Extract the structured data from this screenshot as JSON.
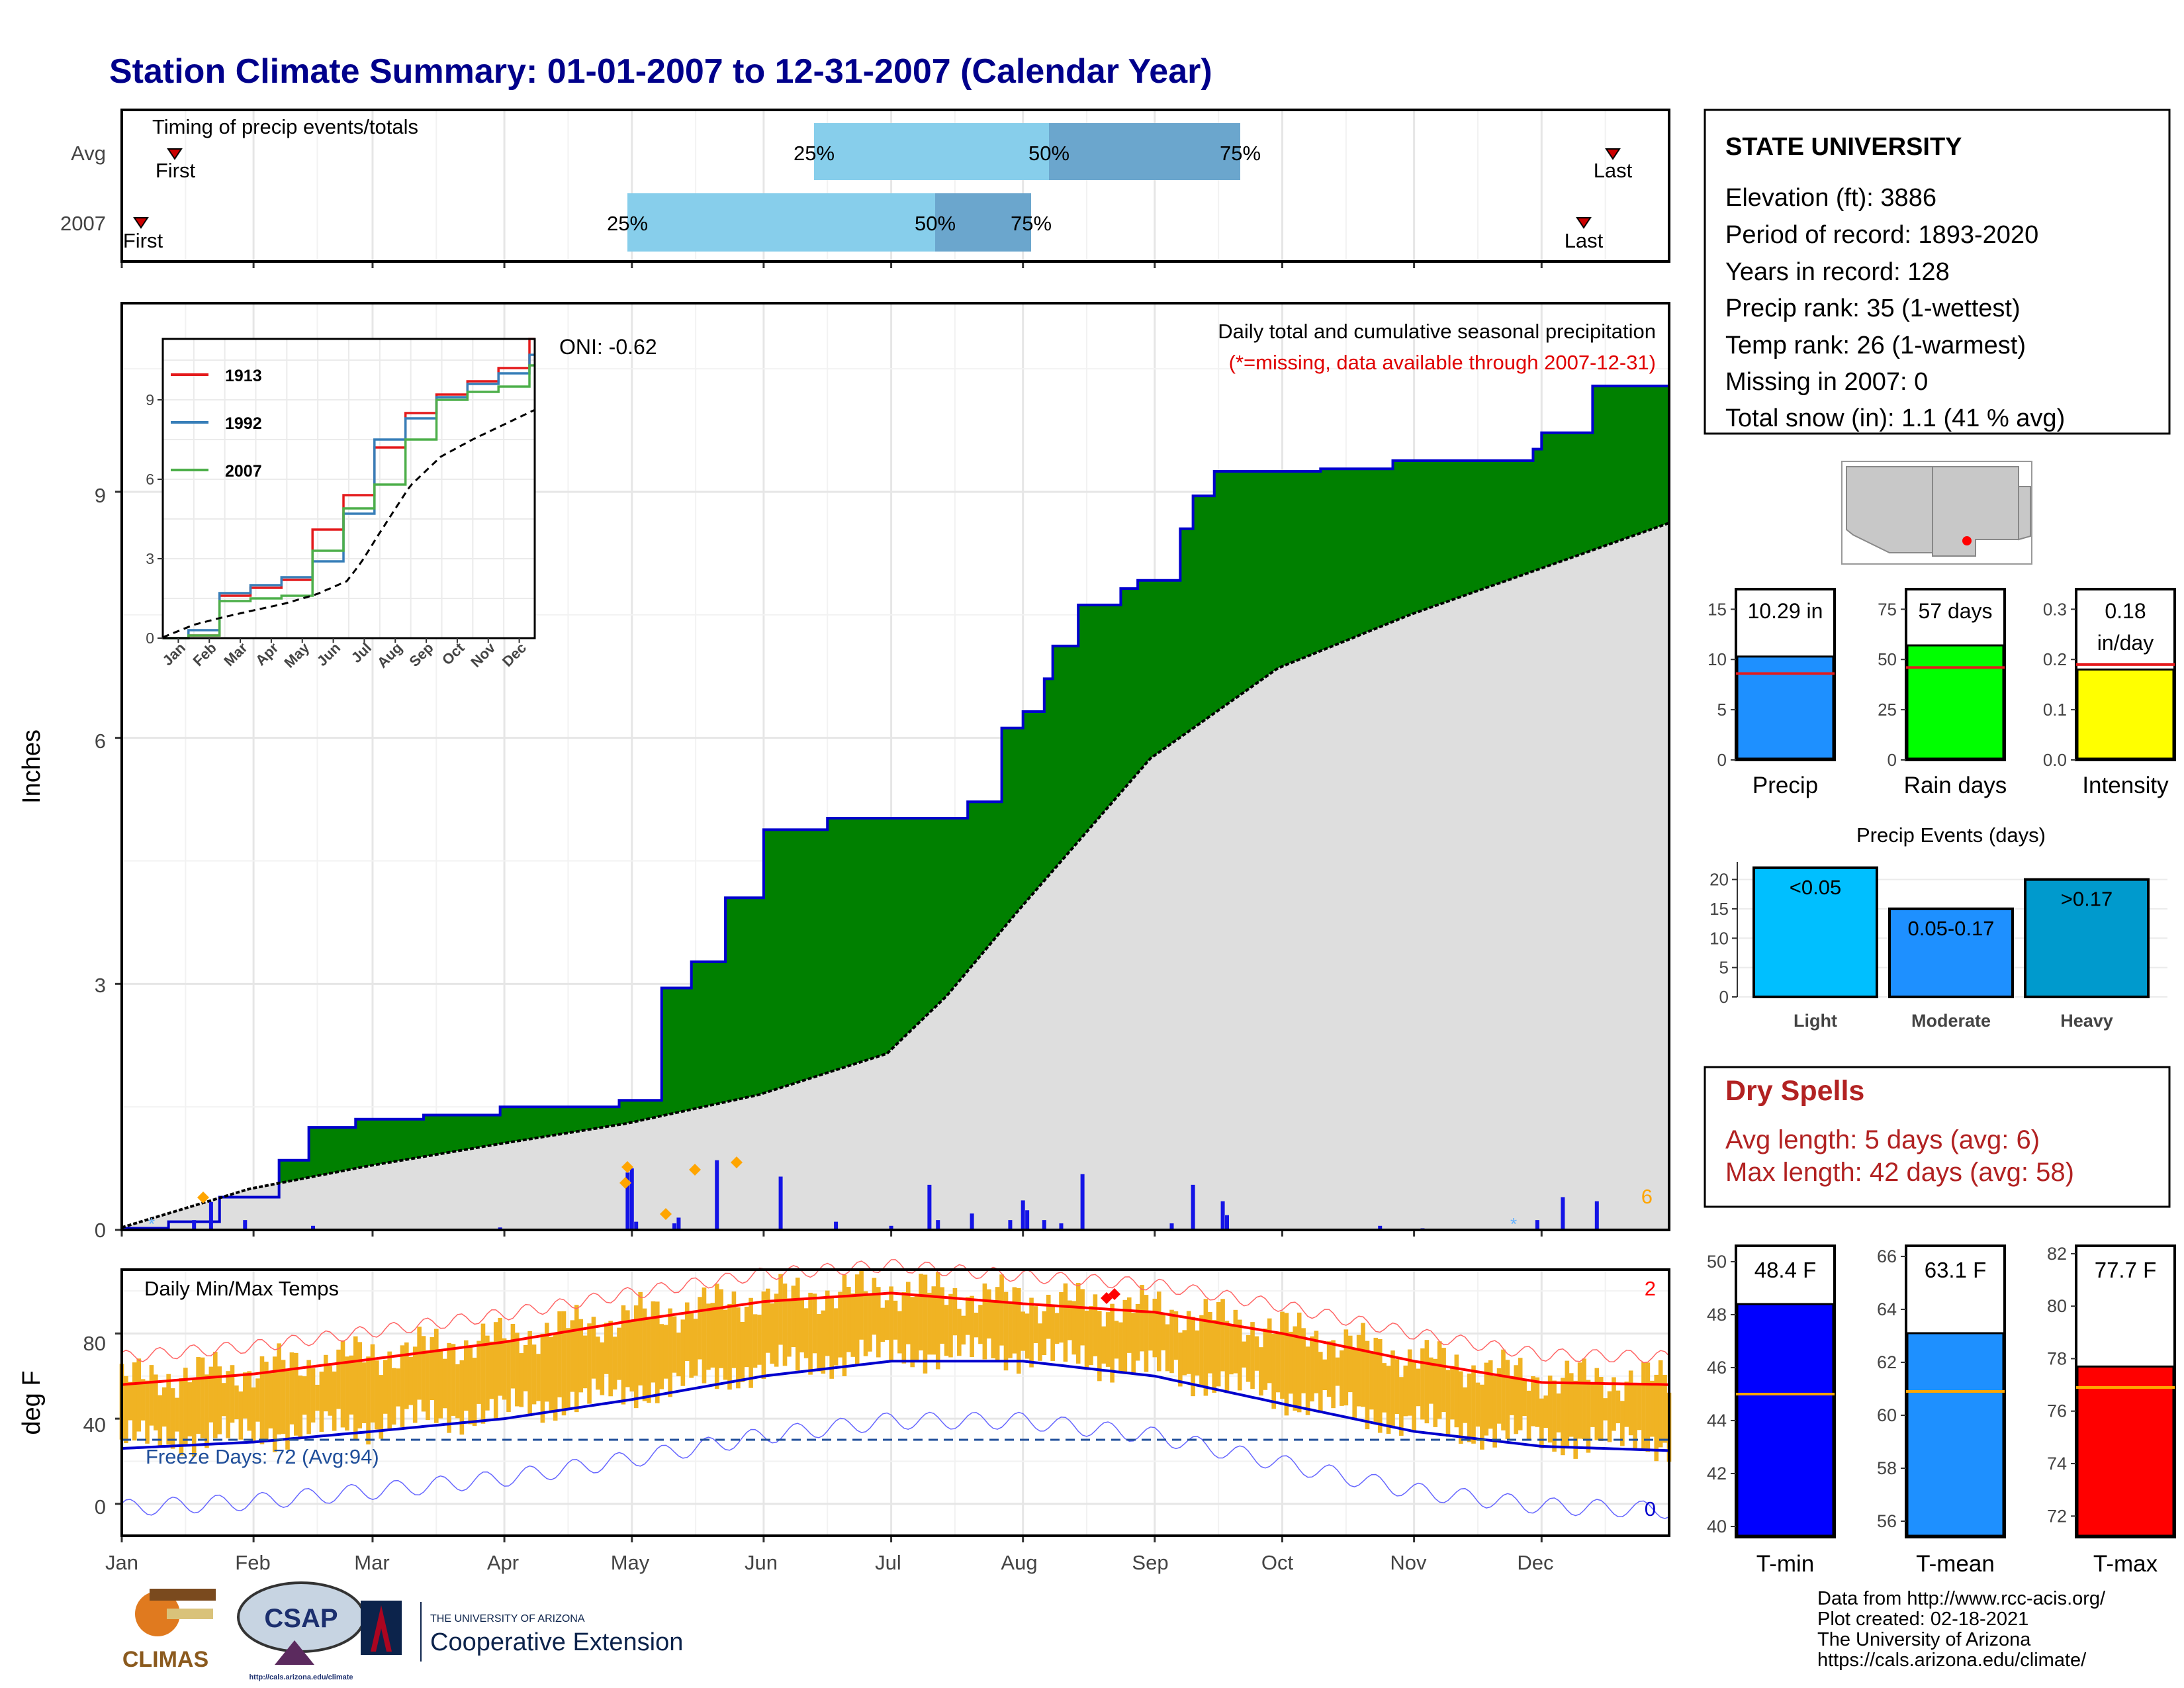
{
  "title": "Station Climate Summary: 01-01-2007 to 12-31-2007 (Calendar Year)",
  "colors": {
    "title": "#00008B",
    "precip_fill": "#008000",
    "precip_line": "#0000CD",
    "avg_fill": "#DEDEDE",
    "daily_bar": "#1414E6",
    "marker": "#FFA500",
    "missing": "#FF0000",
    "temp_range": "#F0B323",
    "tmax_avg": "#FF0000",
    "tmin_avg": "#0000CD",
    "freeze_line": "#1F4E9A",
    "timing_light": "#87CEEB",
    "timing_dark": "#6BA6CD",
    "dry_spell": "#B22222"
  },
  "timing": {
    "title": "Timing of precip events/totals",
    "rows": [
      {
        "label": "Avg",
        "first_label": "First",
        "last_label": "Last",
        "p25_label": "25%",
        "p50_label": "50%",
        "p75_label": "75%"
      },
      {
        "label": "2007",
        "first_label": "First",
        "last_label": "Last",
        "p25_label": "25%",
        "p50_label": "50%",
        "p75_label": "75%"
      }
    ]
  },
  "station": {
    "name": "STATE UNIVERSITY",
    "lines": [
      "Elevation (ft): 3886",
      "Period of record: 1893-2020",
      "Years in record: 128",
      "Precip rank: 35 (1-wettest)",
      "Temp rank: 26 (1-warmest)",
      "Missing in 2007: 0",
      "Total snow (in): 1.1 (41 % avg)"
    ]
  },
  "main_chart": {
    "ylabel": "Inches",
    "oni": "ONI: -0.62",
    "desc1": "Daily total and cumulative seasonal precipitation",
    "desc2": "(*=missing, data available through 2007-12-31)",
    "count_label": "6",
    "y_ticks": [
      "0",
      "3",
      "6",
      "9"
    ]
  },
  "temp_chart": {
    "ylabel": "deg F",
    "title": "Daily Min/Max Temps",
    "freeze_label": "Freeze Days: 72 (Avg:94)",
    "high_count": "2",
    "low_count": "0",
    "y_ticks": [
      "0",
      "40",
      "80"
    ]
  },
  "months": [
    "Jan",
    "Feb",
    "Mar",
    "Apr",
    "May",
    "Jun",
    "Jul",
    "Aug",
    "Sep",
    "Oct",
    "Nov",
    "Dec"
  ],
  "mini_bars": [
    {
      "label": "Precip",
      "value_label": "10.29 in",
      "ticks": [
        "0",
        "5",
        "10",
        "15"
      ]
    },
    {
      "label": "Rain days",
      "value_label": "57 days",
      "ticks": [
        "0",
        "25",
        "50",
        "75"
      ]
    },
    {
      "label": "Intensity",
      "value_label": "0.18",
      "value_label2": "in/day",
      "ticks": [
        "0.0",
        "0.1",
        "0.2",
        "0.3"
      ]
    }
  ],
  "events": {
    "title": "Precip Events (days)",
    "ticks": [
      "0",
      "5",
      "10",
      "15",
      "20"
    ],
    "bars": [
      {
        "cat": "Light",
        "label": "<0.05"
      },
      {
        "cat": "Moderate",
        "label": "0.05-0.17"
      },
      {
        "cat": "Heavy",
        "label": ">0.17"
      }
    ]
  },
  "dry": {
    "title": "Dry Spells",
    "line1": "Avg length: 5 days (avg: 6)",
    "line2": "Max length: 42 days (avg: 58)"
  },
  "temp_bars": [
    {
      "label": "T-min",
      "value_label": "48.4 F",
      "ticks": [
        "40",
        "42",
        "44",
        "46",
        "48",
        "50"
      ]
    },
    {
      "label": "T-mean",
      "value_label": "63.1 F",
      "ticks": [
        "56",
        "58",
        "60",
        "62",
        "64",
        "66"
      ]
    },
    {
      "label": "T-max",
      "value_label": "77.7 F",
      "ticks": [
        "72",
        "74",
        "76",
        "78",
        "80",
        "82"
      ]
    }
  ],
  "footer": {
    "lines": [
      "Data from http://www.rcc-acis.org/",
      "Plot created: 02-18-2021",
      "The University of Arizona",
      "https://cals.arizona.edu/climate/"
    ],
    "climas": "CLIMAS",
    "csap": "CSAP",
    "csap_url": "http://cals.arizona.edu/climate",
    "ua_small": "THE UNIVERSITY OF ARIZONA",
    "ua_big": "Cooperative Extension"
  },
  "chart_data": [
    {
      "type": "area",
      "title": "Daily total and cumulative seasonal precipitation",
      "ylabel": "Inches",
      "ylim": [
        0,
        11.3
      ],
      "x_unit": "day of year 2007",
      "series": [
        {
          "name": "2007 cumulative",
          "x": [
            1,
            12,
            24,
            38,
            45,
            56,
            72,
            90,
            118,
            128,
            135,
            143,
            152,
            167,
            186,
            200,
            208,
            213,
            218,
            220,
            226,
            236,
            240,
            250,
            253,
            258,
            283,
            300,
            333,
            335,
            347,
            365
          ],
          "values": [
            0.02,
            0.1,
            0.4,
            0.85,
            1.25,
            1.35,
            1.4,
            1.5,
            1.58,
            2.95,
            3.27,
            4.05,
            4.88,
            5.02,
            5.02,
            5.22,
            6.12,
            6.32,
            6.72,
            7.12,
            7.62,
            7.82,
            7.92,
            8.55,
            8.95,
            9.25,
            9.28,
            9.38,
            9.52,
            9.72,
            10.29,
            10.29
          ]
        },
        {
          "name": "average cumulative",
          "x": [
            1,
            31,
            59,
            90,
            120,
            151,
            181,
            195,
            212,
            243,
            273,
            304,
            334,
            365
          ],
          "values": [
            0.03,
            0.5,
            0.78,
            1.05,
            1.3,
            1.65,
            2.15,
            2.85,
            3.9,
            5.75,
            6.85,
            7.5,
            8.05,
            8.62
          ]
        },
        {
          "name": "daily precipitation",
          "x": [
            2,
            18,
            22,
            30,
            46,
            90,
            120,
            121,
            122,
            131,
            132,
            141,
            156,
            169,
            182,
            191,
            193,
            201,
            210,
            213,
            214,
            218,
            222,
            227,
            248,
            253,
            260,
            261,
            297,
            307,
            334,
            340,
            348
          ],
          "values": [
            0.02,
            0.12,
            0.34,
            0.12,
            0.05,
            0.03,
            0.7,
            0.75,
            0.1,
            0.08,
            0.15,
            0.85,
            0.65,
            0.1,
            0.05,
            0.55,
            0.12,
            0.2,
            0.12,
            0.36,
            0.24,
            0.12,
            0.08,
            0.68,
            0.08,
            0.55,
            0.35,
            0.18,
            0.05,
            0.02,
            0.12,
            0.4,
            0.35
          ]
        }
      ]
    },
    {
      "type": "line",
      "title": "cumulative precipitation comparison",
      "categories": [
        "Jan",
        "Feb",
        "Mar",
        "Apr",
        "May",
        "Jun",
        "Jul",
        "Aug",
        "Sep",
        "Oct",
        "Nov",
        "Dec"
      ],
      "series": [
        {
          "name": "1913",
          "values": [
            0.1,
            1.6,
            1.9,
            2.2,
            4.1,
            5.4,
            7.2,
            8.5,
            9.2,
            9.7,
            10.2,
            11.3
          ]
        },
        {
          "name": "1992",
          "values": [
            0.3,
            1.7,
            2.0,
            2.3,
            2.9,
            4.7,
            7.5,
            8.3,
            9.1,
            9.6,
            10.0,
            10.7
          ]
        },
        {
          "name": "2007",
          "values": [
            0.1,
            1.4,
            1.5,
            1.6,
            3.3,
            4.9,
            5.8,
            7.5,
            9.0,
            9.3,
            9.5,
            10.3
          ]
        }
      ],
      "ylim": [
        0,
        11.3
      ]
    },
    {
      "type": "line",
      "title": "Daily Min/Max Temps",
      "ylabel": "deg F",
      "ylim": [
        -15,
        110
      ],
      "series": [
        {
          "name": "Avg max",
          "x": [
            1,
            32,
            60,
            91,
            121,
            152,
            182,
            213,
            244,
            274,
            305,
            335,
            365
          ],
          "values": [
            56,
            61,
            68,
            76,
            86,
            95,
            99,
            94,
            90,
            80,
            67,
            57,
            56
          ]
        },
        {
          "name": "Avg min",
          "x": [
            1,
            32,
            60,
            91,
            121,
            152,
            182,
            213,
            244,
            274,
            305,
            335,
            365
          ],
          "values": [
            26,
            29,
            34,
            40,
            49,
            60,
            67,
            67,
            60,
            47,
            34,
            27,
            25
          ]
        },
        {
          "name": "Freeze line",
          "x": [
            1,
            365
          ],
          "values": [
            32,
            32
          ]
        }
      ]
    },
    {
      "type": "bar",
      "title": "Precip Events (days)",
      "categories": [
        "Light",
        "Moderate",
        "Heavy"
      ],
      "values": [
        22,
        15,
        20
      ],
      "ylim": [
        0,
        23
      ]
    },
    {
      "type": "bar",
      "categories": [
        "Precip",
        "Rain days",
        "Intensity"
      ],
      "series": [
        {
          "name": "2007",
          "values": [
            10.29,
            57,
            0.18
          ]
        },
        {
          "name": "avg",
          "values": [
            8.6,
            46,
            0.19
          ]
        }
      ]
    },
    {
      "type": "bar",
      "categories": [
        "T-min",
        "T-mean",
        "T-max"
      ],
      "series": [
        {
          "name": "2007",
          "values": [
            48.4,
            63.1,
            77.7
          ]
        },
        {
          "name": "avg",
          "values": [
            45.0,
            60.9,
            76.9
          ]
        }
      ]
    }
  ]
}
